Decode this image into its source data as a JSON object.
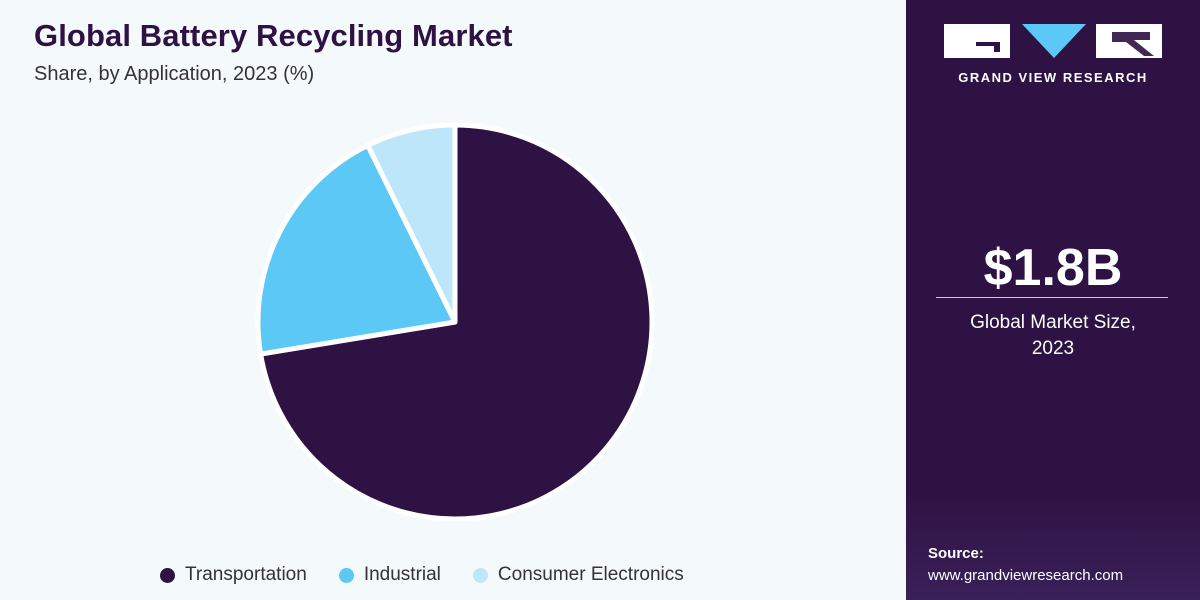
{
  "header": {
    "title": "Global Battery Recycling Market",
    "subtitle": "Share, by Application, 2023 (%)"
  },
  "chart_data": {
    "type": "pie",
    "title": "Global Battery Recycling Market",
    "subtitle": "Share, by Application, 2023 (%)",
    "start_angle_deg": 0,
    "direction": "clockwise",
    "legend_position": "bottom",
    "slices": [
      {
        "label": "Transportation",
        "value": 72.4,
        "color": "#2e1243"
      },
      {
        "label": "Industrial",
        "value": 20.3,
        "color": "#5bc8f5"
      },
      {
        "label": "Consumer Electronics",
        "value": 7.3,
        "color": "#bde7f9"
      }
    ]
  },
  "legend": {
    "items": [
      {
        "label": "Transportation",
        "color": "#2e1243"
      },
      {
        "label": "Industrial",
        "color": "#5bc8f5"
      },
      {
        "label": "Consumer Electronics",
        "color": "#bde7f9"
      }
    ]
  },
  "sidebar": {
    "brand": "GRAND VIEW RESEARCH",
    "market_size": "$1.8B",
    "market_size_label_line1": "Global Market Size,",
    "market_size_label_line2": "2023",
    "source_label": "Source:",
    "source_url": "www.grandviewresearch.com",
    "background_color": "#2e1243",
    "logo_icon": "gvr-logo-icon"
  }
}
